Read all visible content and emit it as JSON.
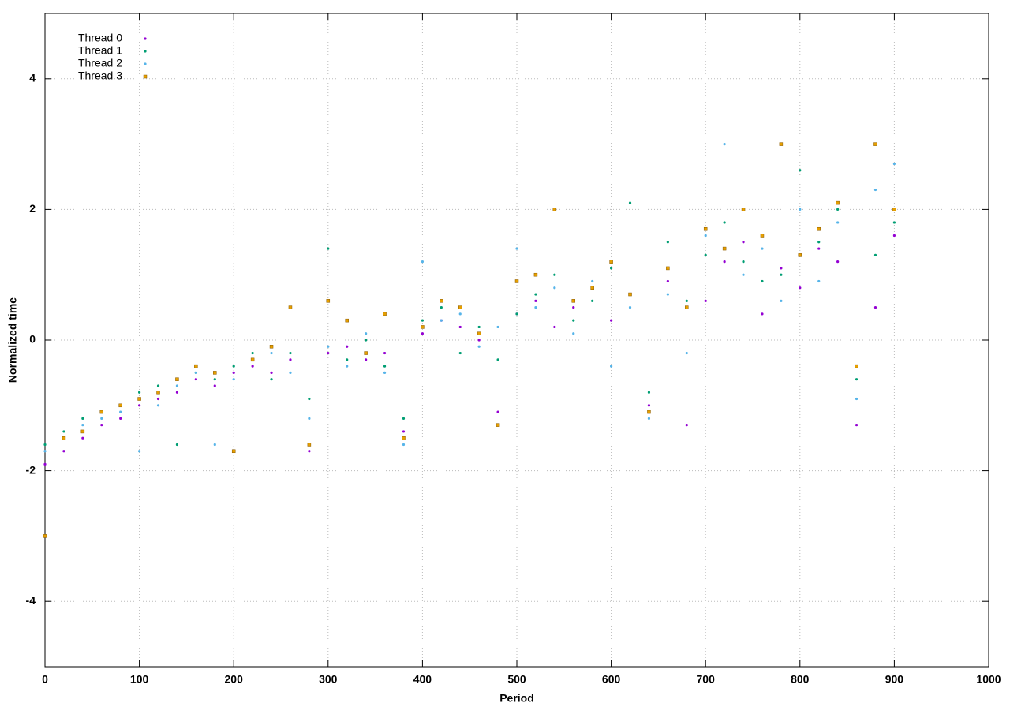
{
  "chart_data": {
    "type": "scatter",
    "xlabel": "Period",
    "ylabel": "Normalized time",
    "x": [
      0,
      20,
      40,
      60,
      80,
      100,
      120,
      140,
      160,
      180,
      200,
      220,
      240,
      260,
      280,
      300,
      320,
      340,
      360,
      380,
      400,
      420,
      440,
      460,
      480,
      500,
      520,
      540,
      560,
      580,
      600,
      620,
      640,
      660,
      680,
      700,
      720,
      740,
      760,
      780,
      800,
      820,
      840,
      860,
      880,
      900
    ],
    "series": [
      {
        "name": "Thread 0",
        "color": "#9400d3",
        "marker": "dot",
        "values": [
          -1.9,
          -1.7,
          -1.5,
          -1.3,
          -1.2,
          -1.0,
          -0.9,
          -0.8,
          -0.6,
          -0.7,
          -0.5,
          -0.4,
          -0.5,
          -0.3,
          -1.7,
          -0.2,
          -0.1,
          -0.3,
          -0.2,
          -1.4,
          0.1,
          0.3,
          0.2,
          0.0,
          -1.1,
          0.4,
          0.6,
          0.2,
          0.5,
          0.8,
          0.3,
          0.7,
          -1.0,
          0.9,
          -1.3,
          0.6,
          1.2,
          1.5,
          0.4,
          1.1,
          0.8,
          1.4,
          1.2,
          -1.3,
          0.5,
          1.6
        ]
      },
      {
        "name": "Thread 1",
        "color": "#009e73",
        "marker": "dot",
        "values": [
          -1.6,
          -1.4,
          -1.2,
          -1.1,
          -1.0,
          -0.8,
          -0.7,
          -1.6,
          -0.5,
          -0.6,
          -0.4,
          -0.2,
          -0.6,
          -0.2,
          -0.9,
          1.4,
          -0.3,
          0.0,
          -0.4,
          -1.2,
          0.3,
          0.5,
          -0.2,
          0.2,
          -0.3,
          0.4,
          0.7,
          1.0,
          0.3,
          0.6,
          1.1,
          2.1,
          -0.8,
          1.5,
          0.6,
          1.3,
          1.8,
          1.2,
          0.9,
          1.0,
          2.6,
          1.5,
          2.0,
          -0.6,
          1.3,
          1.8
        ]
      },
      {
        "name": "Thread 2",
        "color": "#56b4e9",
        "marker": "dot",
        "values": [
          -1.7,
          -1.5,
          -1.3,
          -1.2,
          -1.1,
          -1.7,
          -1.0,
          -0.7,
          -0.5,
          -1.6,
          -0.6,
          -0.3,
          -0.2,
          -0.5,
          -1.2,
          -0.1,
          -0.4,
          0.1,
          -0.5,
          -1.6,
          1.2,
          0.3,
          0.4,
          -0.1,
          0.2,
          1.4,
          0.5,
          0.8,
          0.1,
          0.9,
          -0.4,
          0.5,
          -1.2,
          0.7,
          -0.2,
          1.6,
          3.0,
          1.0,
          1.4,
          0.6,
          2.0,
          0.9,
          1.8,
          -0.9,
          2.3,
          2.7
        ]
      },
      {
        "name": "Thread 3",
        "color": "#e69f00",
        "marker": "square",
        "values": [
          -3.0,
          -1.5,
          -1.4,
          -1.1,
          -1.0,
          -0.9,
          -0.8,
          -0.6,
          -0.4,
          -0.5,
          -1.7,
          -0.3,
          -0.1,
          0.5,
          -1.6,
          0.6,
          0.3,
          -0.2,
          0.4,
          -1.5,
          0.2,
          0.6,
          0.5,
          0.1,
          -1.3,
          0.9,
          1.0,
          2.0,
          0.6,
          0.8,
          1.2,
          0.7,
          -1.1,
          1.1,
          0.5,
          1.7,
          1.4,
          2.0,
          1.6,
          3.0,
          1.3,
          1.7,
          2.1,
          -0.4,
          3.0,
          2.0
        ]
      }
    ],
    "xlim": [
      0,
      1000
    ],
    "xticks": [
      0,
      100,
      200,
      300,
      400,
      500,
      600,
      700,
      800,
      900,
      1000
    ],
    "ylim": [
      -5,
      5
    ],
    "yticks": [
      -4,
      -2,
      0,
      2,
      4
    ],
    "grid": true,
    "legend": "top-left"
  }
}
